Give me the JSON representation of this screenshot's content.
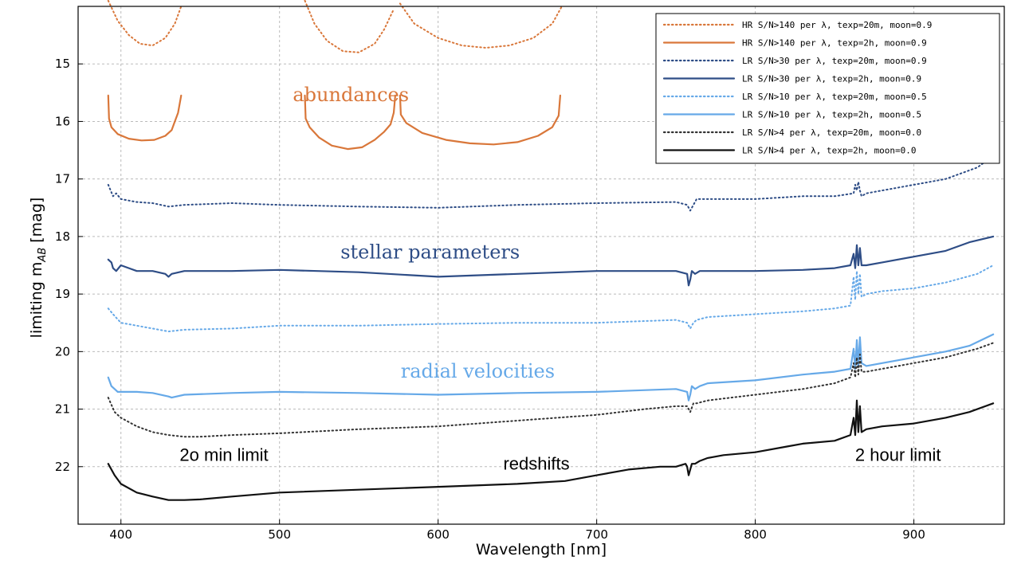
{
  "chart_data": {
    "type": "line",
    "xlabel": "Wavelength [nm]",
    "ylabel_prefix": "limiting m",
    "ylabel_sub": "AB",
    "ylabel_suffix": " [mag]",
    "xlim": [
      373,
      957
    ],
    "ylim": [
      23.0,
      14.0
    ],
    "y_inverted": true,
    "xticks": [
      400,
      500,
      600,
      700,
      800,
      900
    ],
    "yticks": [
      15,
      16,
      17,
      18,
      19,
      20,
      21,
      22
    ],
    "grid": true,
    "legend_position": "top-right",
    "colors": {
      "orange": "#d9773a",
      "dark_blue": "#2e4d86",
      "light_blue": "#66a9e8",
      "black": "#111111"
    },
    "series": [
      {
        "name": "HR S/N>140 per λ, texp=20m, moon=0.9",
        "color": "#d9773a",
        "style": "dotted",
        "segments": [
          {
            "x": [
              392,
              398,
              405,
              412,
              420,
              428,
              434,
              438
            ],
            "y": [
              13.9,
              14.25,
              14.5,
              14.65,
              14.68,
              14.55,
              14.3,
              14.0
            ]
          },
          {
            "x": [
              516,
              522,
              530,
              540,
              550,
              560,
              566,
              572
            ],
            "y": [
              13.9,
              14.3,
              14.6,
              14.78,
              14.8,
              14.65,
              14.4,
              14.05
            ]
          },
          {
            "x": [
              576,
              585,
              600,
              615,
              630,
              645,
              660,
              672,
              678
            ],
            "y": [
              13.95,
              14.3,
              14.55,
              14.68,
              14.72,
              14.68,
              14.55,
              14.3,
              14.0
            ]
          }
        ]
      },
      {
        "name": "HR S/N>140 per λ, texp=2h, moon=0.9",
        "color": "#d9773a",
        "style": "solid",
        "segments": [
          {
            "x": [
              392,
              392.5,
              394,
              398,
              405,
              413,
              421,
              428,
              432,
              434,
              436,
              438
            ],
            "y": [
              15.55,
              15.95,
              16.1,
              16.22,
              16.3,
              16.33,
              16.32,
              16.25,
              16.15,
              16.0,
              15.85,
              15.55
            ]
          },
          {
            "x": [
              516,
              516.5,
              519,
              525,
              533,
              543,
              552,
              560,
              566,
              570,
              572,
              573
            ],
            "y": [
              15.55,
              15.95,
              16.1,
              16.28,
              16.42,
              16.48,
              16.45,
              16.32,
              16.18,
              16.05,
              15.85,
              15.55
            ]
          },
          {
            "x": [
              576,
              576.5,
              580,
              590,
              605,
              620,
              635,
              650,
              663,
              672,
              676,
              677
            ],
            "y": [
              15.55,
              15.88,
              16.03,
              16.2,
              16.32,
              16.38,
              16.4,
              16.36,
              16.25,
              16.1,
              15.9,
              15.55
            ]
          }
        ]
      },
      {
        "name": "LR S/N>30 per λ, texp=20m, moon=0.9",
        "color": "#2e4d86",
        "style": "dotted",
        "segments": [
          {
            "x": [
              392,
              395,
              397,
              400,
              410,
              420,
              430,
              440,
              470,
              500,
              550,
              600,
              650,
              700,
              750,
              757,
              759,
              761,
              763,
              770,
              800,
              830,
              850,
              862,
              863,
              864,
              865,
              866,
              867,
              870,
              880,
              900,
              920,
              940,
              950
            ],
            "y": [
              17.1,
              17.3,
              17.25,
              17.35,
              17.4,
              17.42,
              17.48,
              17.45,
              17.42,
              17.45,
              17.48,
              17.5,
              17.45,
              17.42,
              17.4,
              17.45,
              17.55,
              17.45,
              17.35,
              17.35,
              17.35,
              17.3,
              17.3,
              17.25,
              17.1,
              17.2,
              17.05,
              17.2,
              17.3,
              17.25,
              17.2,
              17.1,
              17.0,
              16.8,
              16.6
            ]
          }
        ]
      },
      {
        "name": "LR S/N>30 per λ, texp=2h, moon=0.9",
        "color": "#2e4d86",
        "style": "solid",
        "segments": [
          {
            "x": [
              392,
              394,
              395,
              397,
              400,
              405,
              410,
              420,
              428,
              430,
              432,
              440,
              470,
              500,
              550,
              600,
              650,
              700,
              750,
              757,
              758,
              759,
              760,
              762,
              765,
              770,
              800,
              830,
              850,
              860,
              862,
              863,
              864,
              865,
              866,
              867,
              870,
              880,
              900,
              920,
              935,
              950
            ],
            "y": [
              18.4,
              18.45,
              18.55,
              18.6,
              18.5,
              18.55,
              18.6,
              18.6,
              18.65,
              18.7,
              18.65,
              18.6,
              18.6,
              18.58,
              18.62,
              18.7,
              18.65,
              18.6,
              18.6,
              18.65,
              18.85,
              18.75,
              18.6,
              18.65,
              18.6,
              18.6,
              18.6,
              18.58,
              18.55,
              18.5,
              18.3,
              18.55,
              18.15,
              18.5,
              18.2,
              18.5,
              18.5,
              18.45,
              18.35,
              18.25,
              18.1,
              18.0
            ]
          }
        ]
      },
      {
        "name": "LR S/N>10 per λ, texp=20m, moon=0.5",
        "color": "#66a9e8",
        "style": "dotted",
        "segments": [
          {
            "x": [
              392,
              395,
              400,
              410,
              420,
              430,
              440,
              470,
              500,
              550,
              600,
              650,
              700,
              750,
              757,
              759,
              761,
              763,
              770,
              800,
              830,
              850,
              860,
              862,
              863,
              864,
              865,
              866,
              867,
              870,
              880,
              900,
              920,
              940,
              950
            ],
            "y": [
              19.25,
              19.35,
              19.5,
              19.55,
              19.6,
              19.65,
              19.62,
              19.6,
              19.55,
              19.55,
              19.52,
              19.5,
              19.5,
              19.45,
              19.5,
              19.6,
              19.5,
              19.45,
              19.4,
              19.35,
              19.3,
              19.25,
              19.2,
              18.7,
              19.1,
              18.6,
              19.0,
              18.65,
              19.05,
              19.0,
              18.95,
              18.9,
              18.8,
              18.65,
              18.5
            ]
          }
        ]
      },
      {
        "name": "LR S/N>10 per λ, texp=2h, moon=0.5",
        "color": "#66a9e8",
        "style": "solid",
        "segments": [
          {
            "x": [
              392,
              394,
              396,
              398,
              400,
              410,
              420,
              430,
              432,
              440,
              470,
              500,
              550,
              600,
              650,
              700,
              750,
              757,
              758,
              759,
              760,
              762,
              765,
              770,
              800,
              830,
              850,
              860,
              862,
              863,
              864,
              865,
              866,
              867,
              870,
              880,
              900,
              920,
              935,
              950
            ],
            "y": [
              20.45,
              20.6,
              20.65,
              20.7,
              20.7,
              20.7,
              20.72,
              20.78,
              20.8,
              20.75,
              20.72,
              20.7,
              20.72,
              20.75,
              20.72,
              20.7,
              20.65,
              20.7,
              20.85,
              20.75,
              20.6,
              20.65,
              20.6,
              20.55,
              20.5,
              20.4,
              20.35,
              20.3,
              19.95,
              20.3,
              19.8,
              20.25,
              19.75,
              20.2,
              20.25,
              20.2,
              20.1,
              20.0,
              19.9,
              19.7
            ]
          }
        ]
      },
      {
        "name": "LR S/N>4 per λ, texp=20m, moon=0.0",
        "color": "#333333",
        "style": "dotted",
        "segments": [
          {
            "x": [
              392,
              396,
              400,
              410,
              420,
              430,
              440,
              450,
              470,
              500,
              550,
              600,
              650,
              700,
              730,
              750,
              757,
              759,
              761,
              763,
              770,
              800,
              830,
              850,
              860,
              862,
              863,
              864,
              865,
              866,
              867,
              870,
              880,
              900,
              920,
              940,
              950
            ],
            "y": [
              20.8,
              21.05,
              21.15,
              21.3,
              21.4,
              21.45,
              21.48,
              21.48,
              21.45,
              21.42,
              21.35,
              21.3,
              21.2,
              21.1,
              21.0,
              20.95,
              20.95,
              21.05,
              20.9,
              20.9,
              20.85,
              20.75,
              20.65,
              20.55,
              20.45,
              20.2,
              20.45,
              20.1,
              20.4,
              20.05,
              20.35,
              20.35,
              20.3,
              20.2,
              20.1,
              19.95,
              19.85
            ]
          }
        ]
      },
      {
        "name": "LR S/N>4 per λ, texp=2h, moon=0.0",
        "color": "#111111",
        "style": "solid",
        "segments": [
          {
            "x": [
              392,
              396,
              400,
              410,
              420,
              430,
              440,
              450,
              470,
              500,
              550,
              600,
              650,
              680,
              700,
              720,
              740,
              750,
              756,
              757,
              758,
              759,
              760,
              762,
              765,
              770,
              780,
              800,
              820,
              830,
              850,
              860,
              862,
              863,
              864,
              865,
              866,
              867,
              870,
              880,
              900,
              920,
              935,
              950
            ],
            "y": [
              21.95,
              22.15,
              22.3,
              22.45,
              22.52,
              22.58,
              22.58,
              22.57,
              22.52,
              22.45,
              22.4,
              22.35,
              22.3,
              22.25,
              22.15,
              22.05,
              22.0,
              22.0,
              21.95,
              22.0,
              22.15,
              22.05,
              21.95,
              21.95,
              21.9,
              21.85,
              21.8,
              21.75,
              21.65,
              21.6,
              21.55,
              21.45,
              21.15,
              21.45,
              20.85,
              21.4,
              20.95,
              21.4,
              21.35,
              21.3,
              21.25,
              21.15,
              21.05,
              20.9
            ]
          }
        ]
      }
    ],
    "annotations": [
      {
        "text": "abundances",
        "x": 545,
        "y": 15.65,
        "color": "#d9773a",
        "font": "serif"
      },
      {
        "text": "stellar parameters",
        "x": 595,
        "y": 18.38,
        "color": "#2e4d86",
        "font": "serif"
      },
      {
        "text": "radial velocities",
        "x": 625,
        "y": 20.45,
        "color": "#66a9e8",
        "font": "serif"
      },
      {
        "text": "2o min limit",
        "x": 465,
        "y": 21.9,
        "color": "#000000",
        "font": "sans"
      },
      {
        "text": "redshifts",
        "x": 662,
        "y": 22.05,
        "color": "#000000",
        "font": "sans"
      },
      {
        "text": "2 hour limit",
        "x": 890,
        "y": 21.9,
        "color": "#000000",
        "font": "sans"
      }
    ]
  }
}
